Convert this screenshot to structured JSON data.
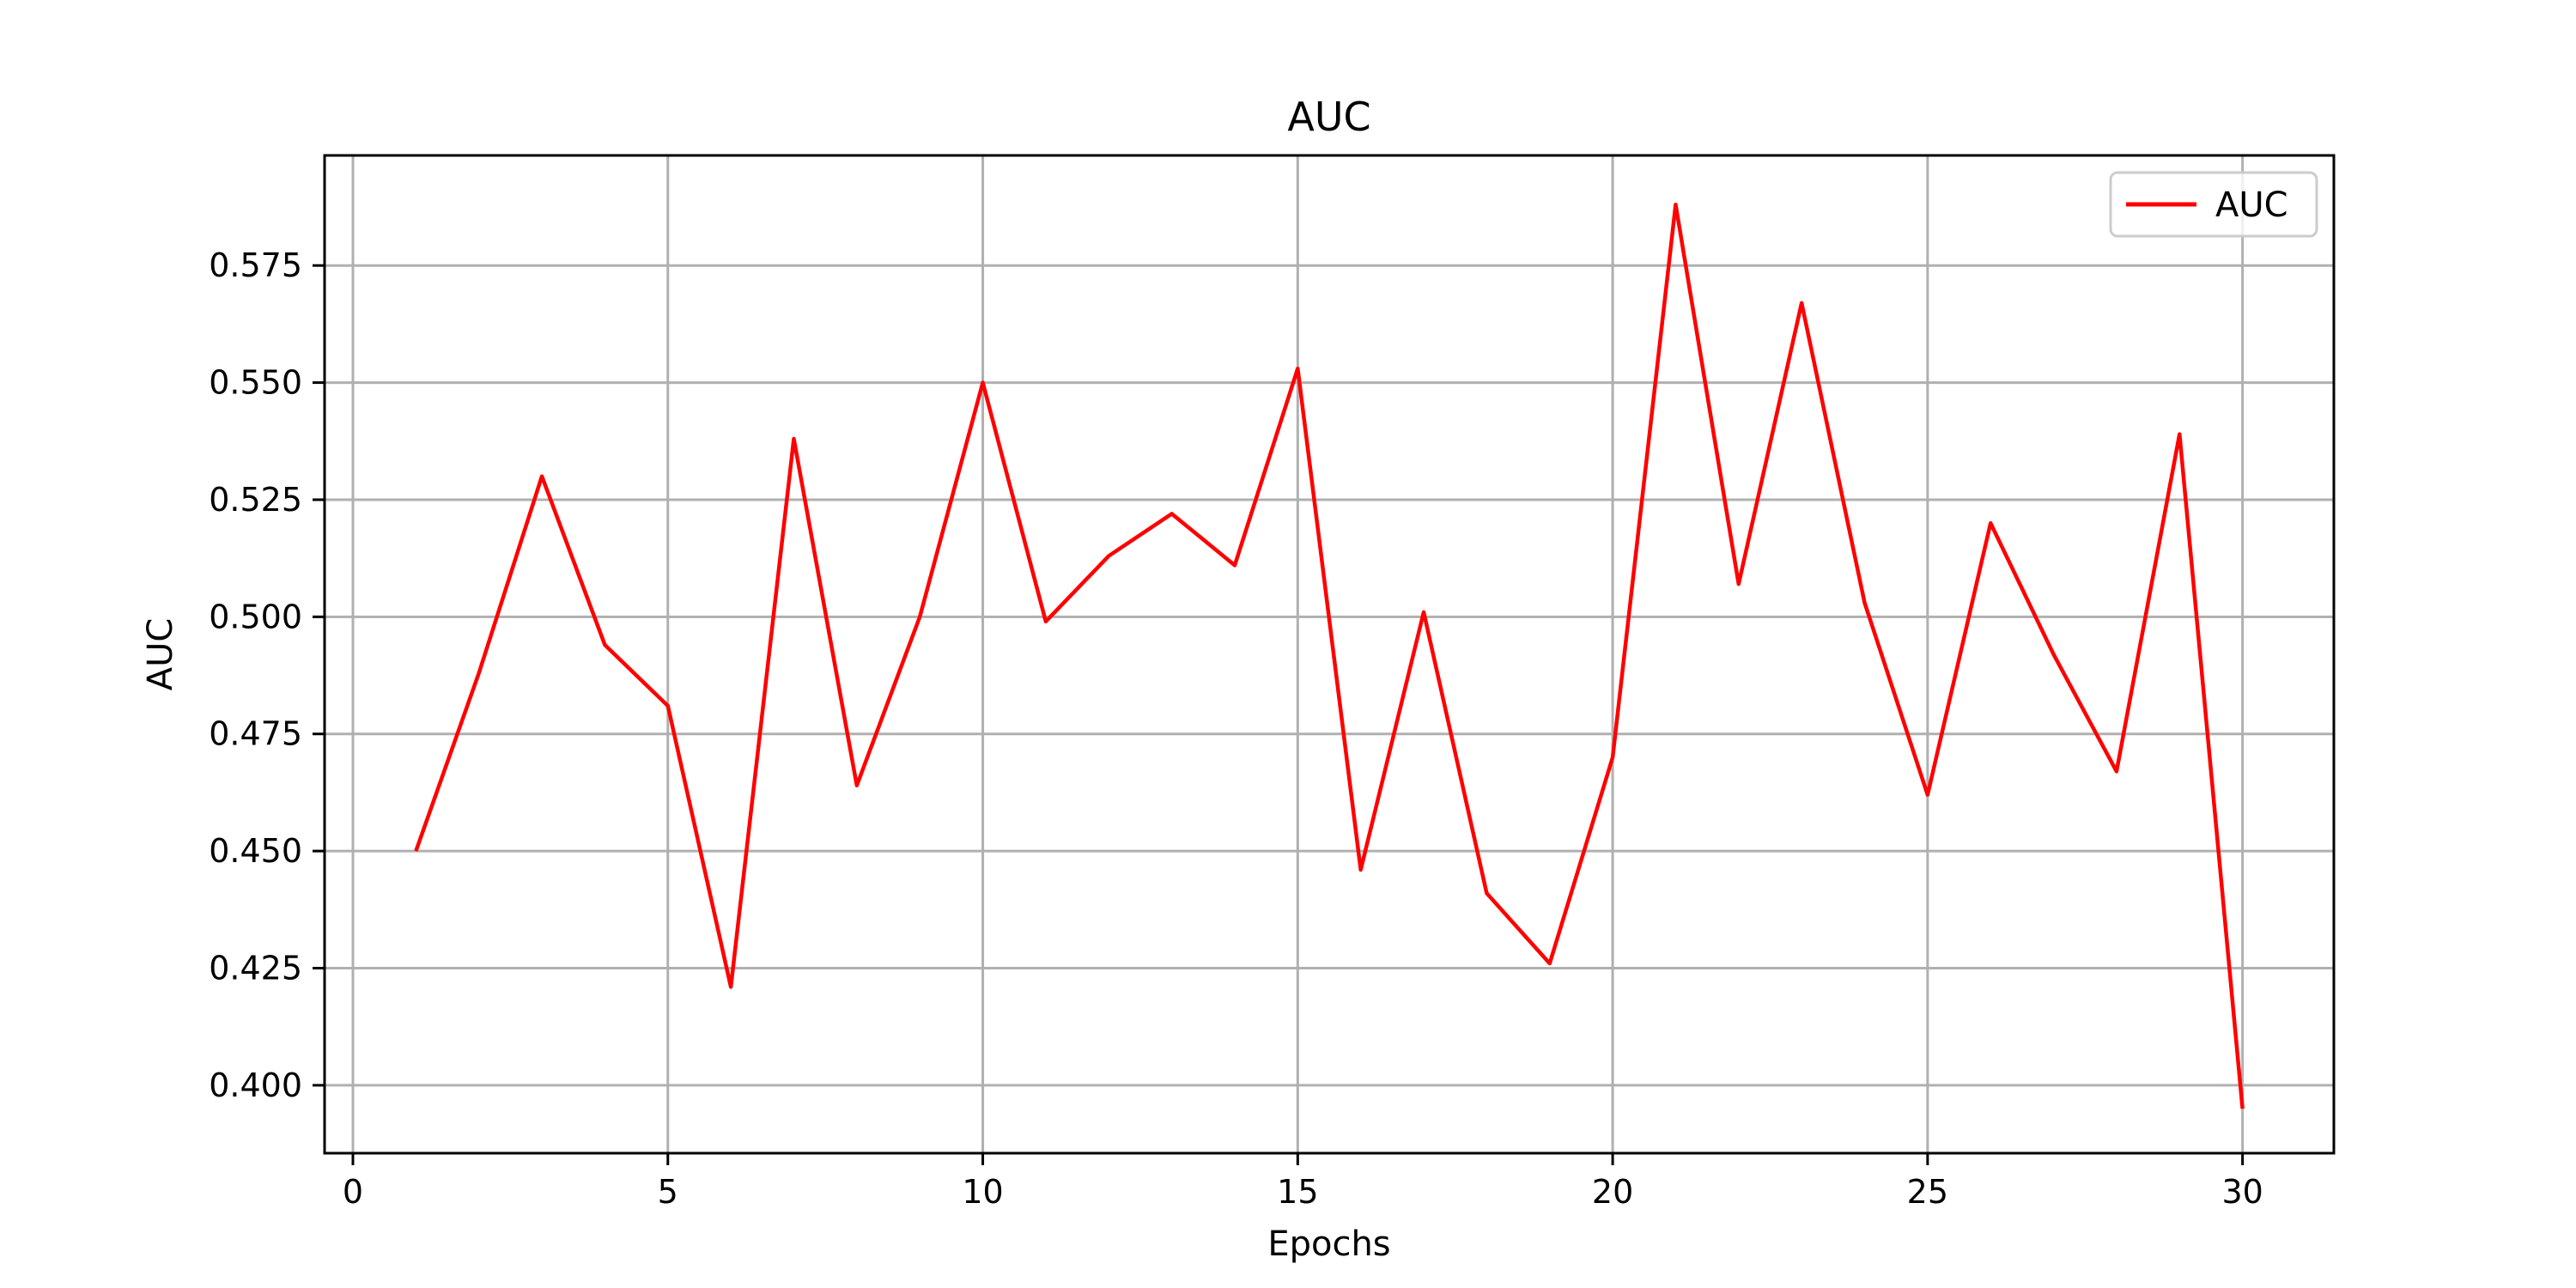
{
  "chart_data": {
    "type": "line",
    "title": "AUC",
    "xlabel": "Epochs",
    "ylabel": "AUC",
    "xlim": [
      -0.45,
      31.45
    ],
    "ylim": [
      0.3855,
      0.5985
    ],
    "xticks": [
      0,
      5,
      10,
      15,
      20,
      25,
      30
    ],
    "yticks": [
      0.4,
      0.425,
      0.45,
      0.475,
      0.5,
      0.525,
      0.55,
      0.575
    ],
    "ytick_labels": [
      "0.400",
      "0.425",
      "0.450",
      "0.475",
      "0.500",
      "0.525",
      "0.550",
      "0.575"
    ],
    "grid": true,
    "legend": "top-right",
    "series": [
      {
        "name": "AUC",
        "color": "#ff0000",
        "x": [
          1,
          2,
          3,
          4,
          5,
          6,
          7,
          8,
          9,
          10,
          11,
          12,
          13,
          14,
          15,
          16,
          17,
          18,
          19,
          20,
          21,
          22,
          23,
          24,
          25,
          26,
          27,
          28,
          29,
          30
        ],
        "y": [
          0.45,
          0.488,
          0.53,
          0.494,
          0.481,
          0.421,
          0.538,
          0.464,
          0.5,
          0.55,
          0.499,
          0.513,
          0.522,
          0.511,
          0.553,
          0.446,
          0.501,
          0.441,
          0.426,
          0.47,
          0.588,
          0.507,
          0.567,
          0.503,
          0.462,
          0.52,
          0.492,
          0.467,
          0.539,
          0.395
        ]
      }
    ]
  }
}
